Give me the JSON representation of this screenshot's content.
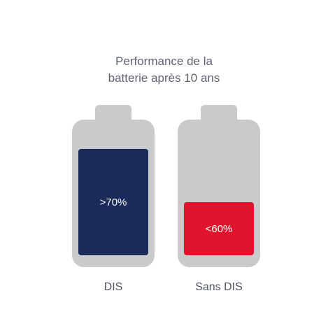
{
  "title": {
    "line1": "Performance de la",
    "line2": "batterie après 10 ans"
  },
  "batteries": [
    {
      "label": "DIS",
      "value_text": ">70%",
      "color": "#1a2a5a"
    },
    {
      "label": "Sans DIS",
      "value_text": "<60%",
      "color": "#e0142c"
    }
  ],
  "colors": {
    "battery_shell": "#c9cacb",
    "text": "#5f6472"
  }
}
